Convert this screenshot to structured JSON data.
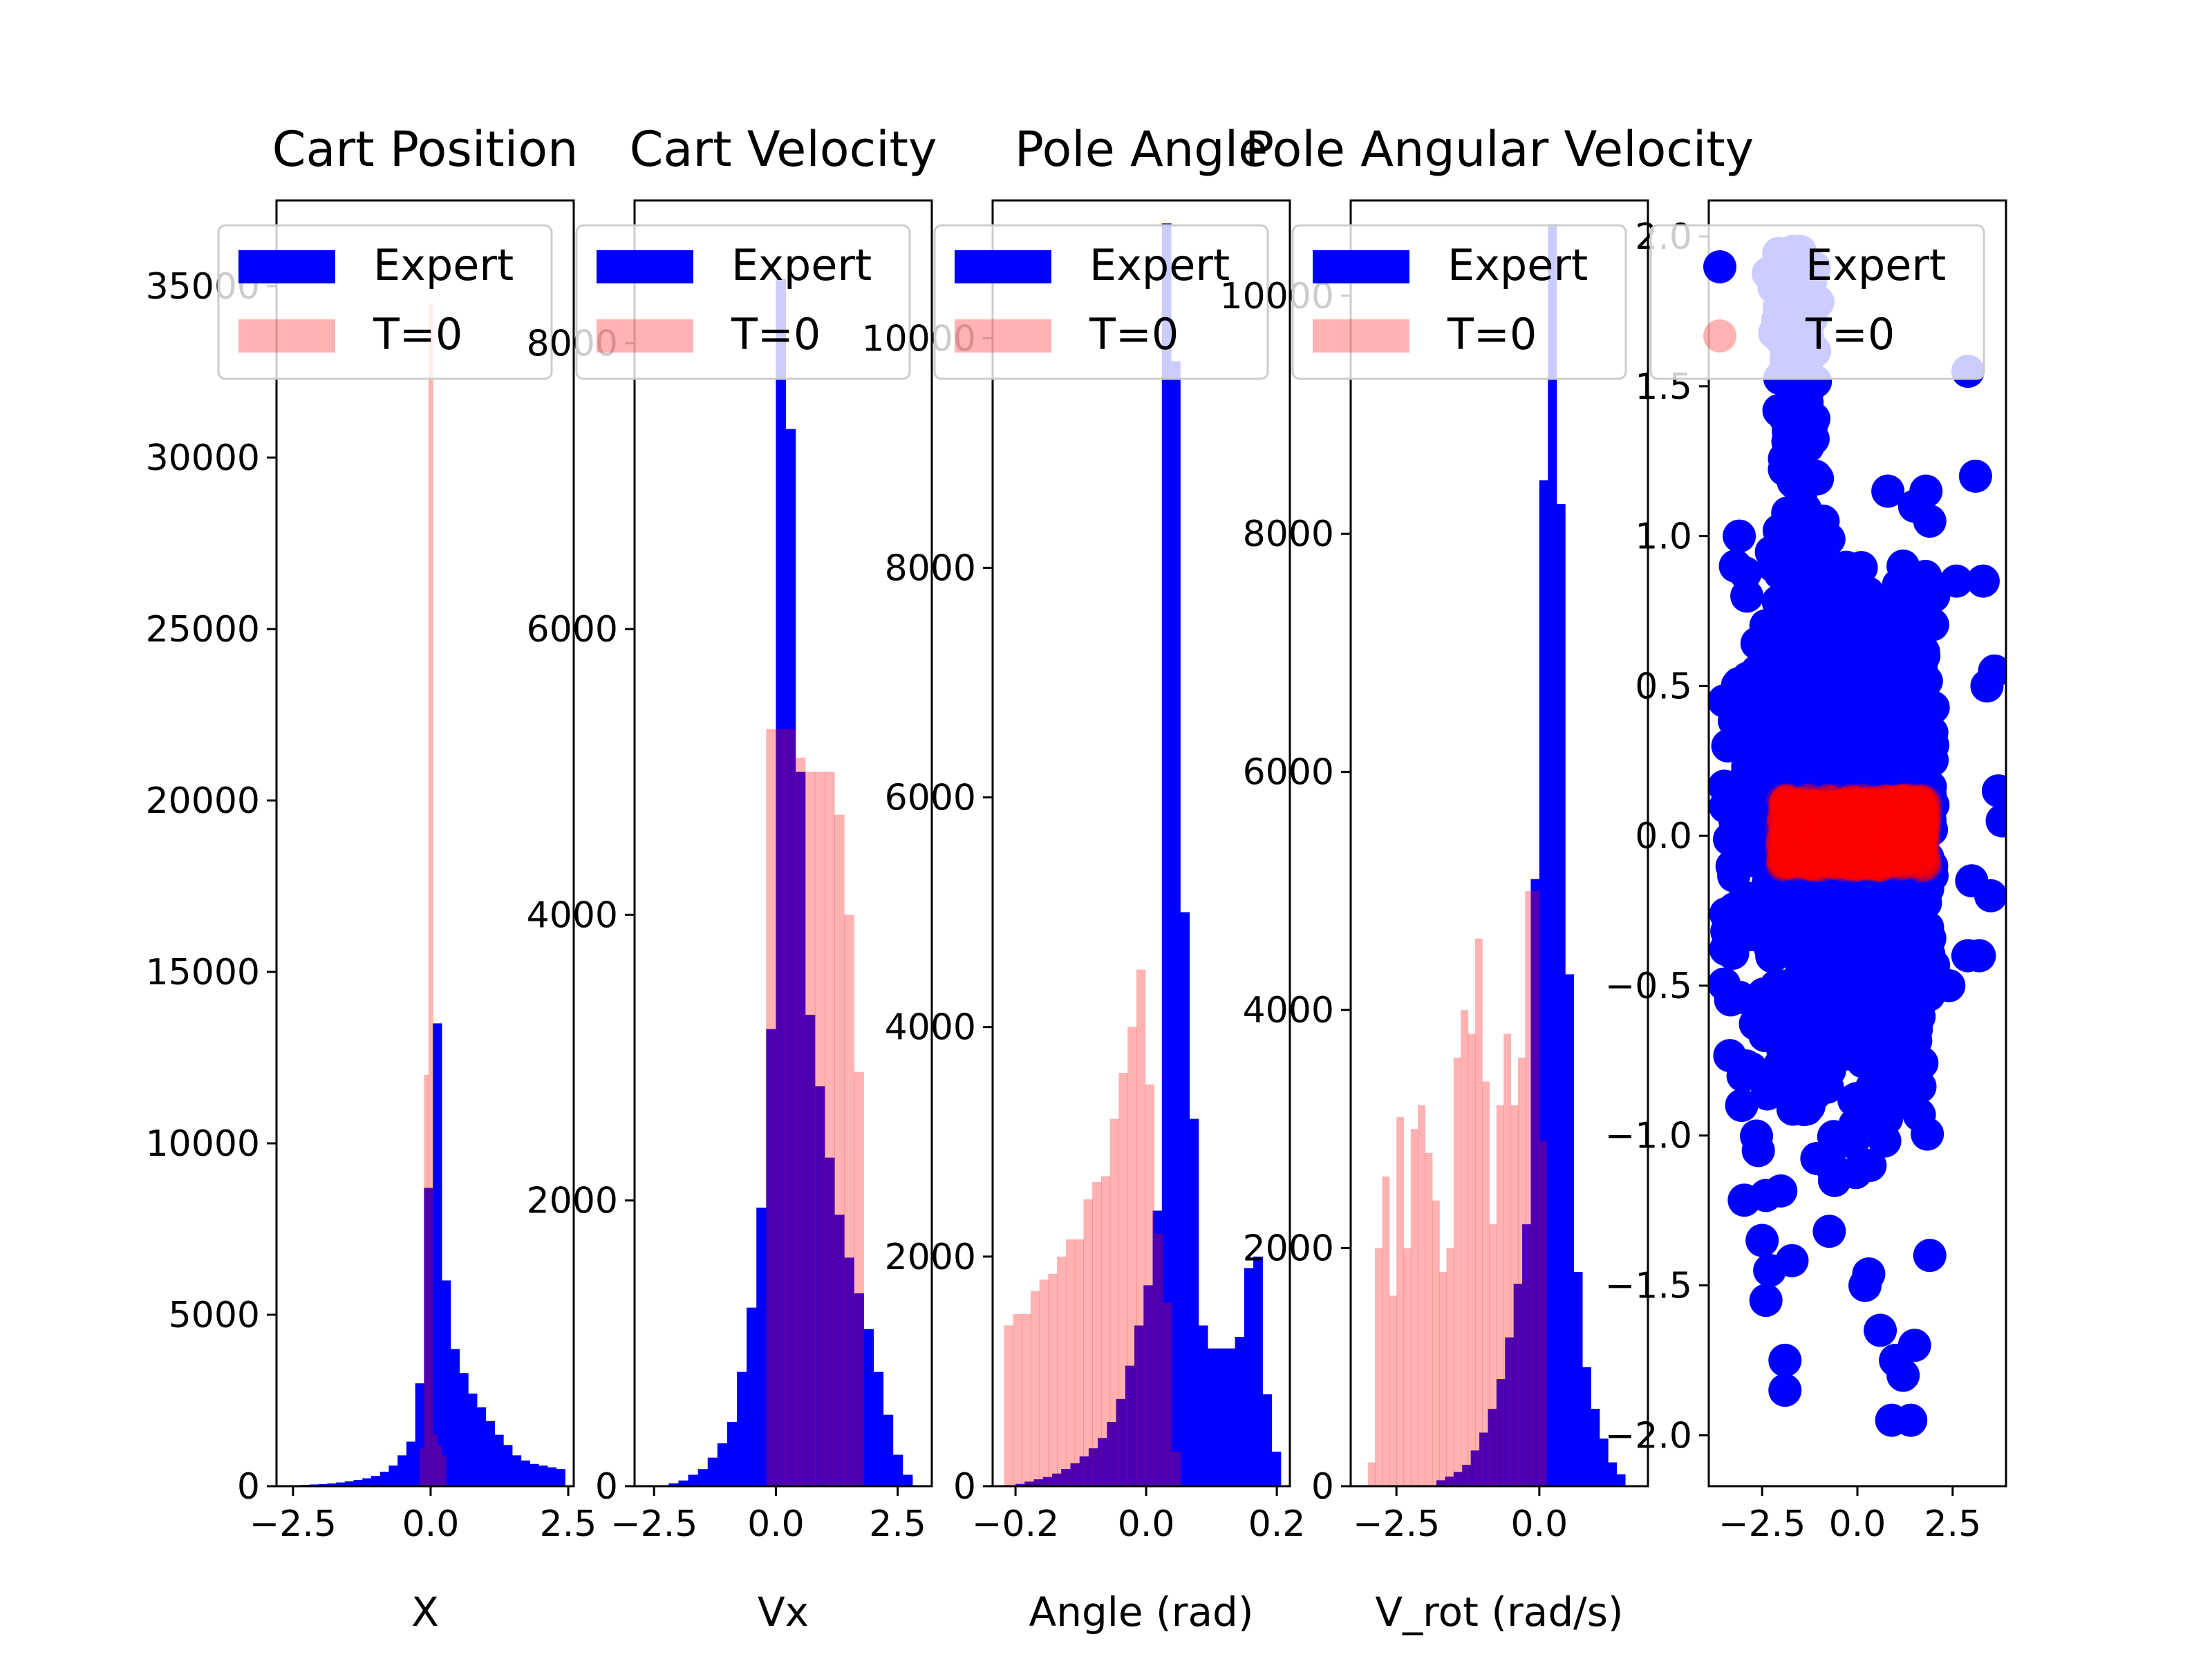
{
  "colors": {
    "expert": "#0000ff",
    "t0": "#ff0000",
    "t0_alpha": 0.3,
    "overlap": "#4d00b3"
  },
  "legend": {
    "location": "top",
    "labels": [
      "Expert",
      "T=0"
    ]
  },
  "chart_data": [
    {
      "type": "histogram",
      "title": "Cart Position",
      "xlabel": "X",
      "ylabel": "",
      "xlim": [
        -2.8,
        2.6
      ],
      "ylim": [
        0,
        37500
      ],
      "xticks": [
        -2.5,
        0.0,
        2.5
      ],
      "xtick_labels": [
        "−2.5",
        "0.0",
        "2.5"
      ],
      "yticks": [
        0,
        5000,
        10000,
        15000,
        20000,
        25000,
        30000,
        35000
      ],
      "ytick_labels": [
        "0",
        "5000",
        "10000",
        "15000",
        "20000",
        "25000",
        "30000",
        "35000"
      ],
      "grid": false,
      "series": [
        {
          "name": "Expert",
          "bin_width": 0.16,
          "x": [
            -2.6,
            -2.44,
            -2.28,
            -2.12,
            -1.96,
            -1.8,
            -1.64,
            -1.48,
            -1.32,
            -1.16,
            -1.0,
            -0.84,
            -0.68,
            -0.52,
            -0.36,
            -0.2,
            -0.04,
            0.12,
            0.28,
            0.44,
            0.6,
            0.76,
            0.92,
            1.08,
            1.24,
            1.4,
            1.56,
            1.72,
            1.88,
            2.04,
            2.2,
            2.36
          ],
          "values": [
            20,
            30,
            40,
            50,
            60,
            80,
            110,
            140,
            180,
            230,
            300,
            420,
            600,
            900,
            1300,
            3000,
            8700,
            13500,
            6000,
            4000,
            3300,
            2700,
            2300,
            1900,
            1500,
            1200,
            900,
            750,
            650,
            600,
            550,
            500
          ]
        },
        {
          "name": "T=0",
          "bin_width": 0.08,
          "x": [
            -0.16,
            -0.08,
            0.0,
            0.08,
            0.16,
            0.24
          ],
          "values": [
            1100,
            12000,
            34500,
            1500,
            1200,
            900
          ]
        }
      ]
    },
    {
      "type": "histogram",
      "title": "Cart Velocity",
      "xlabel": "Vx",
      "ylabel": "",
      "xlim": [
        -2.9,
        3.2
      ],
      "ylim": [
        0,
        9000
      ],
      "xticks": [
        -2.5,
        0.0,
        2.5
      ],
      "xtick_labels": [
        "−2.5",
        "0.0",
        "2.5"
      ],
      "yticks": [
        0,
        2000,
        4000,
        6000,
        8000
      ],
      "ytick_labels": [
        "0",
        "2000",
        "4000",
        "6000",
        "8000"
      ],
      "grid": false,
      "series": [
        {
          "name": "Expert",
          "bin_width": 0.2,
          "x": [
            -2.1,
            -1.9,
            -1.7,
            -1.5,
            -1.3,
            -1.1,
            -0.9,
            -0.7,
            -0.5,
            -0.3,
            -0.1,
            0.1,
            0.3,
            0.5,
            0.7,
            0.9,
            1.1,
            1.3,
            1.5,
            1.7,
            1.9,
            2.1,
            2.3,
            2.5,
            2.7
          ],
          "values": [
            20,
            40,
            80,
            120,
            200,
            300,
            450,
            800,
            1250,
            1950,
            3200,
            8450,
            7400,
            5000,
            3300,
            2800,
            2300,
            1900,
            1600,
            1350,
            1100,
            800,
            500,
            220,
            80
          ]
        },
        {
          "name": "T=0",
          "bin_width": 0.2,
          "x": [
            -0.1,
            0.1,
            0.3,
            0.5,
            0.7,
            0.9,
            1.1,
            1.3,
            1.5,
            1.7
          ],
          "values": [
            5300,
            5300,
            5300,
            5100,
            5000,
            5000,
            5000,
            4700,
            4000,
            2900
          ]
        }
      ]
    },
    {
      "type": "histogram",
      "title": "Pole Angle",
      "xlabel": "Angle (rad)",
      "ylabel": "",
      "xlim": [
        -0.235,
        0.22
      ],
      "ylim": [
        0,
        11200
      ],
      "xticks": [
        -0.2,
        0.0,
        0.2
      ],
      "xtick_labels": [
        "−0.2",
        "0.0",
        "0.2"
      ],
      "yticks": [
        0,
        2000,
        4000,
        6000,
        8000,
        10000
      ],
      "ytick_labels": [
        "0",
        "2000",
        "4000",
        "6000",
        "8000",
        "10000"
      ],
      "grid": false,
      "series": [
        {
          "name": "Expert",
          "bin_width": 0.014,
          "x": [
            -0.193,
            -0.179,
            -0.165,
            -0.151,
            -0.137,
            -0.123,
            -0.109,
            -0.095,
            -0.081,
            -0.067,
            -0.053,
            -0.039,
            -0.025,
            -0.011,
            0.003,
            0.017,
            0.031,
            0.045,
            0.059,
            0.073,
            0.087,
            0.101,
            0.115,
            0.129,
            0.143,
            0.157,
            0.171,
            0.185,
            0.199
          ],
          "values": [
            20,
            40,
            60,
            80,
            110,
            150,
            200,
            260,
            330,
            420,
            560,
            760,
            1050,
            1400,
            1750,
            2400,
            11000,
            9800,
            5000,
            3200,
            1400,
            1200,
            1200,
            1200,
            1300,
            1900,
            2000,
            800,
            300
          ]
        },
        {
          "name": "T=0",
          "bin_width": 0.0135,
          "x": [
            -0.2107,
            -0.1972,
            -0.1837,
            -0.1702,
            -0.1567,
            -0.1432,
            -0.1297,
            -0.1162,
            -0.1027,
            -0.0892,
            -0.0757,
            -0.0622,
            -0.0487,
            -0.0352,
            -0.0217,
            -0.0082,
            0.0053,
            0.0188,
            0.0323,
            0.0458
          ],
          "values": [
            1400,
            1500,
            1500,
            1700,
            1800,
            1850,
            2000,
            2150,
            2150,
            2500,
            2650,
            2700,
            3200,
            3600,
            4000,
            4500,
            3500,
            2200,
            1600,
            300
          ]
        }
      ]
    },
    {
      "type": "histogram",
      "title": "Pole Angular Velocity",
      "xlabel": "V_rot (rad/s)",
      "ylabel": "",
      "xlim": [
        -3.3,
        1.9
      ],
      "ylim": [
        0,
        10800
      ],
      "xticks": [
        -2.5,
        0.0
      ],
      "xtick_labels": [
        "−2.5",
        "0.0"
      ],
      "yticks": [
        0,
        2000,
        4000,
        6000,
        8000,
        10000
      ],
      "ytick_labels": [
        "0",
        "2000",
        "4000",
        "6000",
        "8000",
        "10000"
      ],
      "grid": false,
      "series": [
        {
          "name": "Expert",
          "bin_width": 0.15,
          "x": [
            -1.725,
            -1.575,
            -1.425,
            -1.275,
            -1.125,
            -0.975,
            -0.825,
            -0.675,
            -0.525,
            -0.375,
            -0.225,
            -0.075,
            0.075,
            0.225,
            0.375,
            0.525,
            0.675,
            0.825,
            0.975,
            1.125,
            1.275,
            1.425
          ],
          "values": [
            50,
            80,
            120,
            180,
            300,
            450,
            650,
            900,
            1250,
            1700,
            2200,
            5100,
            8450,
            10600,
            8250,
            4300,
            1800,
            1000,
            650,
            400,
            200,
            100
          ]
        },
        {
          "name": "T=0",
          "bin_width": 0.125,
          "x": [
            -2.9375,
            -2.8125,
            -2.6875,
            -2.5625,
            -2.4375,
            -2.3125,
            -2.1875,
            -2.0625,
            -1.9375,
            -1.8125,
            -1.6875,
            -1.5625,
            -1.4375,
            -1.3125,
            -1.1875,
            -1.0625,
            -0.9375,
            -0.8125,
            -0.6875,
            -0.5625,
            -0.4375,
            -0.3125,
            -0.1875,
            -0.0625,
            0.0625
          ],
          "values": [
            200,
            2000,
            2600,
            1600,
            3100,
            2000,
            3000,
            3200,
            2800,
            2400,
            1800,
            2000,
            3600,
            4000,
            3800,
            4600,
            3400,
            2200,
            3200,
            3800,
            3200,
            3600,
            5000,
            5000,
            2900
          ]
        }
      ]
    },
    {
      "type": "scatter",
      "title": "",
      "xlabel": "",
      "ylabel": "",
      "xlim": [
        -3.9,
        3.9
      ],
      "ylim": [
        -2.17,
        2.12
      ],
      "xticks": [
        -2.5,
        0.0,
        2.5
      ],
      "xtick_labels": [
        "−2.5",
        "0.0",
        "2.5"
      ],
      "yticks": [
        -2.0,
        -1.5,
        -1.0,
        -0.5,
        0.0,
        0.5,
        1.0,
        1.5,
        2.0
      ],
      "ytick_labels": [
        "−2.0",
        "−1.5",
        "−1.0",
        "−0.5",
        "0.0",
        "0.5",
        "1.0",
        "1.5",
        "2.0"
      ],
      "grid": false,
      "series": [
        {
          "name": "Expert",
          "points": [
            [
              -3.5,
              0.45
            ],
            [
              -3.4,
              0.3
            ],
            [
              -3.2,
              0.9
            ],
            [
              -3.1,
              1.0
            ],
            [
              -2.9,
              0.8
            ],
            [
              -2.2,
              0.9
            ],
            [
              -1.7,
              1.95
            ],
            [
              -1.6,
              1.65
            ],
            [
              -1.5,
              1.95
            ],
            [
              -1.4,
              1.5
            ],
            [
              -1.3,
              1.3
            ],
            [
              -1.1,
              1.2
            ],
            [
              -0.9,
              1.05
            ],
            [
              -0.7,
              0.9
            ],
            [
              -0.5,
              0.8
            ],
            [
              0.8,
              1.15
            ],
            [
              1.2,
              0.9
            ],
            [
              1.5,
              1.1
            ],
            [
              1.8,
              1.15
            ],
            [
              1.9,
              1.05
            ],
            [
              2.0,
              0.8
            ],
            [
              2.6,
              0.85
            ],
            [
              2.9,
              1.55
            ],
            [
              3.1,
              1.2
            ],
            [
              3.3,
              0.85
            ],
            [
              3.4,
              0.5
            ],
            [
              3.6,
              0.55
            ],
            [
              3.7,
              0.15
            ],
            [
              3.8,
              0.05
            ],
            [
              3.5,
              -0.2
            ],
            [
              3.0,
              -0.15
            ],
            [
              2.9,
              -0.4
            ],
            [
              3.2,
              -0.4
            ],
            [
              2.4,
              -0.5
            ],
            [
              -3.0,
              -0.8
            ],
            [
              -2.6,
              -1.05
            ],
            [
              -2.4,
              -1.2
            ],
            [
              -2.5,
              -1.35
            ],
            [
              -2.3,
              -1.45
            ],
            [
              -2.4,
              -1.55
            ],
            [
              -1.9,
              -1.75
            ],
            [
              -1.9,
              -1.85
            ],
            [
              0.2,
              -1.5
            ],
            [
              0.6,
              -1.65
            ],
            [
              1.0,
              -1.75
            ],
            [
              1.2,
              -1.8
            ],
            [
              1.5,
              -1.7
            ],
            [
              0.9,
              -1.95
            ],
            [
              1.4,
              -1.95
            ],
            [
              -0.6,
              -1.15
            ],
            [
              1.9,
              -1.4
            ]
          ],
          "dense_region": {
            "x_range": [
              -3.5,
              2.0
            ],
            "y_range": [
              -1.6,
              1.5
            ]
          }
        },
        {
          "name": "T=0",
          "dense_region": {
            "x_range": [
              -2.0,
              1.8
            ],
            "y_range": [
              -0.1,
              0.12
            ]
          }
        }
      ]
    }
  ]
}
